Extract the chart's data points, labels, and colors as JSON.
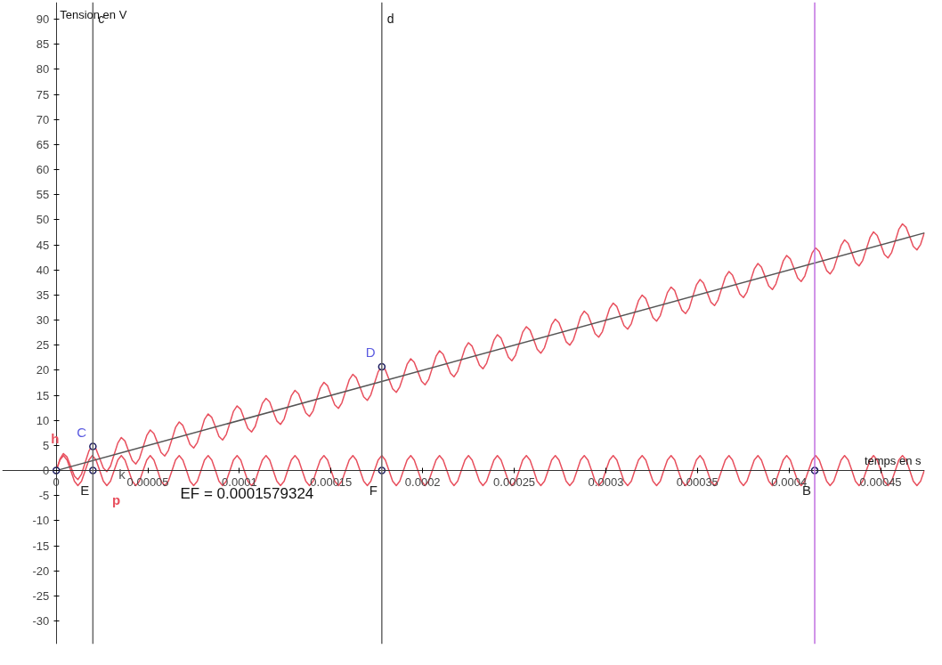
{
  "chart_data": {
    "type": "line",
    "xlabel": "temps en s",
    "ylabel": "Tension en V",
    "xlim": [
      -2.95e-05,
      0.000474
    ],
    "ylim": [
      -34.6,
      93.4
    ],
    "xticks": [
      0,
      {
        "value": 5e-05,
        "label": "0.00005"
      },
      {
        "value": 0.0001,
        "label": "0.0001"
      },
      {
        "value": 0.00015,
        "label": "0.00015"
      },
      {
        "value": 0.0002,
        "label": "0.0002"
      },
      {
        "value": 0.00025,
        "label": "0.00025"
      },
      {
        "value": 0.0003,
        "label": "0.0003"
      },
      {
        "value": 0.00035,
        "label": "0.00035"
      },
      {
        "value": 0.0004,
        "label": "0.0004"
      },
      {
        "value": 0.00045,
        "label": "0.00045"
      }
    ],
    "yticks": [
      -30,
      -25,
      -20,
      -15,
      -10,
      -5,
      0,
      5,
      10,
      15,
      20,
      25,
      30,
      35,
      40,
      45,
      50,
      55,
      60,
      65,
      70,
      75,
      80,
      85,
      90
    ],
    "grid": false,
    "x": [
      0,
      2e-06,
      3.9e-06,
      5.9e-06,
      7.9e-06,
      9.9e-06,
      1.18e-05,
      1.38e-05,
      1.58e-05,
      1.78e-05,
      1.97e-05,
      2.17e-05,
      2.37e-05,
      2.57e-05,
      2.76e-05,
      2.96e-05,
      3.16e-05,
      3.36e-05,
      3.55e-05,
      3.75e-05,
      3.95e-05,
      4.15e-05,
      4.34e-05,
      4.54e-05,
      4.74e-05,
      4.94e-05,
      5.13e-05,
      5.33e-05,
      5.53e-05,
      5.72e-05,
      5.92e-05,
      6.12e-05,
      6.32e-05,
      6.51e-05,
      6.71e-05,
      6.91e-05,
      7.11e-05,
      7.3e-05,
      7.5e-05,
      7.7e-05,
      7.9e-05,
      8.09e-05,
      8.29e-05,
      8.49e-05,
      8.69e-05,
      8.88e-05,
      9.08e-05,
      9.28e-05,
      9.48e-05,
      9.67e-05,
      9.87e-05,
      0.0001007,
      0.0001026,
      0.0001046,
      0.0001066,
      0.0001086,
      0.0001105,
      0.0001125,
      0.0001145,
      0.0001165,
      0.0001184,
      0.0001204,
      0.0001224,
      0.0001244,
      0.0001263,
      0.0001283,
      0.0001303,
      0.0001323,
      0.0001342,
      0.0001362,
      0.0001382,
      0.0001402,
      0.0001421,
      0.0001441,
      0.0001461,
      0.0001481,
      0.00015,
      0.000152,
      0.000154,
      0.0001559,
      0.0001579,
      0.0001599,
      0.0001619,
      0.0001638,
      0.0001658,
      0.0001678,
      0.0001698,
      0.0001717,
      0.0001737,
      0.0001757,
      0.0001777,
      0.0001796,
      0.0001816,
      0.0001836,
      0.0001856,
      0.0001875,
      0.0001895,
      0.0001915,
      0.0001935,
      0.0001954,
      0.0001974,
      0.0001994,
      0.0002013,
      0.0002033,
      0.0002053,
      0.0002073,
      0.0002092,
      0.0002112,
      0.0002132,
      0.0002152,
      0.0002171,
      0.0002191,
      0.0002211,
      0.0002231,
      0.000225,
      0.000227,
      0.000229,
      0.000231,
      0.0002329,
      0.0002349,
      0.0002369,
      0.0002389,
      0.0002408,
      0.0002428,
      0.0002448,
      0.0002468,
      0.0002487,
      0.0002507,
      0.0002527,
      0.0002546,
      0.0002566,
      0.0002586,
      0.0002606,
      0.0002625,
      0.0002645,
      0.0002665,
      0.0002685,
      0.0002704,
      0.0002724,
      0.0002744,
      0.0002764,
      0.0002783,
      0.0002803,
      0.0002823,
      0.0002843,
      0.0002862,
      0.0002882,
      0.0002902,
      0.0002922,
      0.0002941,
      0.0002961,
      0.0002981,
      0.0003,
      0.000302,
      0.000304,
      0.000306,
      0.0003079,
      0.0003099,
      0.0003119,
      0.0003139,
      0.0003158,
      0.0003178,
      0.0003198,
      0.0003218,
      0.0003237,
      0.0003257,
      0.0003277,
      0.0003297,
      0.0003316,
      0.0003336,
      0.0003356,
      0.0003376,
      0.0003395,
      0.0003415,
      0.0003435,
      0.0003455,
      0.0003474,
      0.0003494,
      0.0003514,
      0.0003533,
      0.0003553,
      0.0003573,
      0.0003593,
      0.0003612,
      0.0003632,
      0.0003652,
      0.0003672,
      0.0003691,
      0.0003711,
      0.0003731,
      0.0003751,
      0.000377,
      0.000379,
      0.000381,
      0.000383,
      0.0003849,
      0.0003869,
      0.0003889,
      0.0003909,
      0.0003928,
      0.0003948,
      0.0003968,
      0.0003987,
      0.0004007,
      0.0004027,
      0.0004047,
      0.0004066,
      0.0004086,
      0.0004106,
      0.0004126,
      0.0004145,
      0.0004165,
      0.0004185,
      0.0004205,
      0.0004224,
      0.0004244,
      0.0004264,
      0.0004284,
      0.0004303,
      0.0004323,
      0.0004343,
      0.0004362,
      0.0004382,
      0.0004402,
      0.0004422,
      0.0004442,
      0.0004461,
      0.0004481,
      0.0004501,
      0.000452,
      0.000454,
      0.000456,
      0.000458,
      0.0004599,
      0.0004619,
      0.0004639,
      0.0004659,
      0.0004678,
      0.0004698,
      0.0004718,
      0.0004738
    ],
    "series": [
      {
        "name": "h",
        "color": "#e8505e",
        "values": [
          0,
          2.3,
          3.4,
          2.7,
          0.8,
          -1.1,
          -1.8,
          -0.7,
          1.6,
          3.9,
          5.0,
          4.3,
          2.4,
          0.5,
          -0.2,
          0.9,
          3.2,
          5.5,
          6.6,
          5.9,
          3.9,
          2.0,
          1.3,
          2.4,
          4.7,
          7.0,
          8.1,
          7.4,
          5.5,
          3.6,
          2.9,
          4.0,
          6.3,
          8.6,
          9.7,
          9.0,
          7.1,
          5.2,
          4.5,
          5.6,
          7.9,
          10.2,
          11.3,
          10.6,
          8.7,
          6.8,
          6.1,
          7.2,
          9.5,
          11.8,
          12.9,
          12.2,
          10.3,
          8.4,
          7.7,
          8.8,
          11.1,
          13.4,
          14.4,
          13.7,
          11.8,
          9.9,
          9.2,
          10.3,
          12.6,
          14.9,
          16.0,
          15.3,
          13.4,
          11.5,
          10.8,
          11.9,
          14.2,
          16.5,
          17.6,
          16.9,
          15.0,
          13.1,
          12.4,
          13.5,
          15.8,
          18.1,
          19.2,
          18.5,
          16.6,
          14.7,
          14.0,
          15.1,
          17.4,
          19.7,
          20.8,
          20.1,
          18.2,
          16.3,
          15.6,
          16.7,
          18.9,
          21.2,
          22.3,
          21.6,
          19.7,
          17.8,
          17.1,
          18.2,
          20.5,
          22.8,
          23.9,
          23.2,
          21.3,
          19.4,
          18.7,
          19.8,
          22.1,
          24.4,
          25.5,
          24.8,
          22.9,
          21.0,
          20.3,
          21.4,
          23.7,
          26.0,
          27.1,
          26.4,
          24.5,
          22.6,
          21.9,
          23.0,
          25.3,
          27.6,
          28.7,
          28.0,
          26.1,
          24.2,
          23.4,
          24.5,
          26.8,
          29.1,
          30.2,
          29.5,
          27.6,
          25.7,
          25.0,
          26.1,
          28.4,
          30.7,
          31.8,
          31.1,
          29.2,
          27.3,
          26.6,
          27.7,
          30.0,
          32.3,
          33.4,
          32.7,
          30.8,
          28.9,
          28.2,
          29.3,
          31.6,
          33.9,
          35.0,
          34.3,
          32.4,
          30.5,
          29.8,
          30.9,
          33.2,
          35.5,
          36.6,
          35.9,
          33.9,
          32.0,
          31.3,
          32.4,
          34.7,
          37.0,
          38.1,
          37.4,
          35.5,
          33.6,
          32.9,
          34.0,
          36.3,
          38.6,
          39.7,
          39.0,
          37.1,
          35.2,
          34.5,
          35.6,
          37.9,
          40.2,
          41.3,
          40.6,
          38.7,
          36.8,
          36.1,
          37.2,
          39.5,
          41.8,
          42.9,
          42.2,
          40.3,
          38.4,
          37.7,
          38.8,
          41.1,
          43.4,
          44.4,
          43.7,
          41.8,
          39.9,
          39.2,
          40.3,
          42.6,
          44.9,
          46.0,
          45.3,
          43.4,
          41.5,
          40.8,
          41.9,
          44.2,
          46.5,
          47.6,
          46.9,
          45.0,
          43.1,
          42.4,
          43.5,
          45.8,
          48.1,
          49.2,
          48.5,
          46.6,
          44.7,
          44.0,
          45.1,
          47.4
        ]
      },
      {
        "name": "p",
        "color": "#e8505e",
        "values": [
          0,
          2.1,
          3,
          2.1,
          0,
          -2.1,
          -3,
          -2.1,
          0,
          2.1,
          3,
          2.1,
          0,
          -2.1,
          -3,
          -2.1,
          0,
          2.1,
          3,
          2.1,
          0,
          -2.1,
          -3,
          -2.1,
          0,
          2.1,
          3,
          2.1,
          0,
          -2.1,
          -3,
          -2.1,
          0,
          2.1,
          3,
          2.1,
          0,
          -2.1,
          -3,
          -2.1,
          0,
          2.1,
          3,
          2.1,
          0,
          -2.1,
          -3,
          -2.1,
          0,
          2.1,
          3,
          2.1,
          0,
          -2.1,
          -3,
          -2.1,
          0,
          2.1,
          3,
          2.1,
          0,
          -2.1,
          -3,
          -2.1,
          0,
          2.1,
          3,
          2.1,
          0,
          -2.1,
          -3,
          -2.1,
          0,
          2.1,
          3,
          2.1,
          0,
          -2.1,
          -3,
          -2.1,
          0,
          2.1,
          3,
          2.1,
          0,
          -2.1,
          -3,
          -2.1,
          0,
          2.1,
          3,
          2.1,
          0,
          -2.1,
          -3,
          -2.1,
          0,
          2.1,
          3,
          2.1,
          0,
          -2.1,
          -3,
          -2.1,
          0,
          2.1,
          3,
          2.1,
          0,
          -2.1,
          -3,
          -2.1,
          0,
          2.1,
          3,
          2.1,
          0,
          -2.1,
          -3,
          -2.1,
          0,
          2.1,
          3,
          2.1,
          0,
          -2.1,
          -3,
          -2.1,
          0,
          2.1,
          3,
          2.1,
          0,
          -2.1,
          -3,
          -2.1,
          0,
          2.1,
          3,
          2.1,
          0,
          -2.1,
          -3,
          -2.1,
          0,
          2.1,
          3,
          2.1,
          0,
          -2.1,
          -3,
          -2.1,
          0,
          2.1,
          3,
          2.1,
          0,
          -2.1,
          -3,
          -2.1,
          0,
          2.1,
          3,
          2.1,
          0,
          -2.1,
          -3,
          -2.1,
          0,
          2.1,
          3,
          2.1,
          0,
          -2.1,
          -3,
          -2.1,
          0,
          2.1,
          3,
          2.1,
          0,
          -2.1,
          -3,
          -2.1,
          0,
          2.1,
          3,
          2.1,
          0,
          -2.1,
          -3,
          -2.1,
          0,
          2.1,
          3,
          2.1,
          0,
          -2.1,
          -3,
          -2.1,
          0,
          2.1,
          3,
          2.1,
          0,
          -2.1,
          -3,
          -2.1,
          0,
          2.1,
          3,
          2.1,
          0,
          -2.1,
          -3,
          -2.1,
          0,
          2.1,
          3,
          2.1,
          0,
          -2.1,
          -3,
          -2.1,
          0,
          2.1,
          3,
          2.1,
          0,
          -2.1,
          -3,
          -2.1,
          0,
          2.1,
          3,
          2.1,
          0,
          -2.1,
          -3,
          -2.1,
          0
        ]
      },
      {
        "name": "k",
        "color": "#555555",
        "x": [
          0,
          0.000474
        ],
        "values": [
          0,
          47.4
        ]
      },
      {
        "type": "scatter",
        "color": "#1a1a5e",
        "marker": "circle",
        "x": [
          0,
          2e-05,
          0.0001777,
          2e-05,
          0.0001777,
          0.000414
        ],
        "values": [
          0,
          4.8,
          20.7,
          0,
          0,
          0
        ]
      }
    ],
    "ref_lines": [
      {
        "axis": "x",
        "value": 2e-05,
        "label": "c",
        "color": "#666666"
      },
      {
        "axis": "x",
        "value": 0.0001777,
        "label": "d",
        "color": "#666666"
      },
      {
        "axis": "x",
        "value": 0.000414,
        "color": "#c070e0"
      }
    ],
    "annotations": [
      {
        "text": "C",
        "x": 2e-05,
        "y": 4.8
      },
      {
        "text": "D",
        "x": 0.0001777,
        "y": 20.7
      },
      {
        "text": "E",
        "x": 2e-05,
        "y": 0
      },
      {
        "text": "F",
        "x": 0.0001777,
        "y": 0
      },
      {
        "text": "B",
        "x": 0.000414,
        "y": 0
      },
      "EF = 0.0001579324"
    ]
  }
}
